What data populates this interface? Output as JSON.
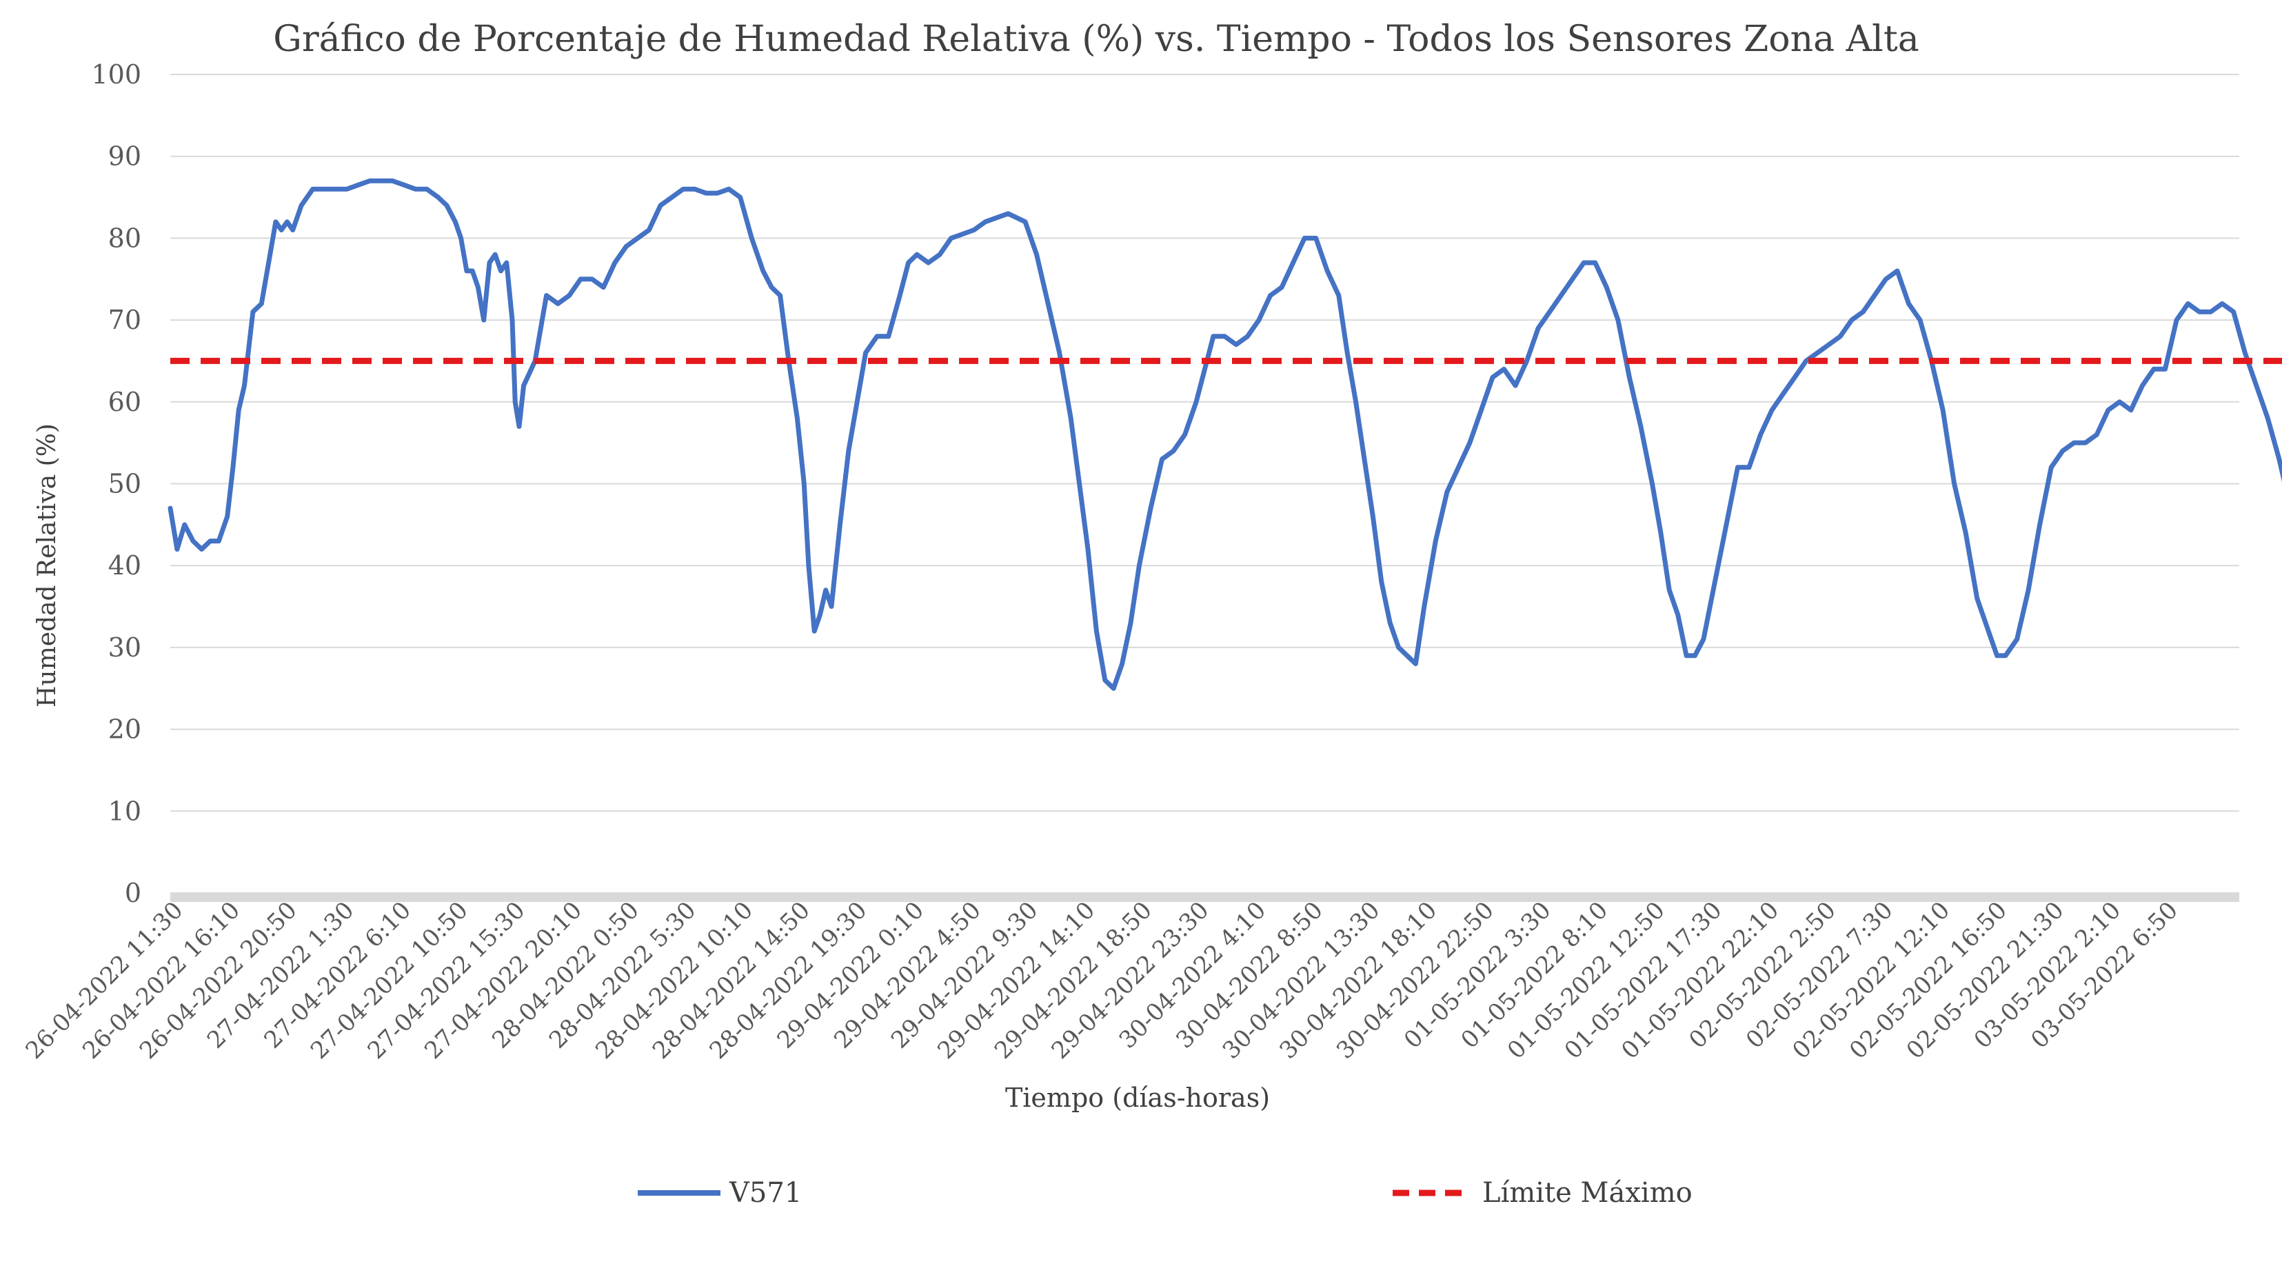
{
  "chart_data": {
    "type": "line",
    "title": "Gráfico de Porcentaje de Humedad Relativa (%) vs. Tiempo - Todos los Sensores Zona Alta",
    "xlabel": "Tiempo (días-horas)",
    "ylabel": "Humedad Relativa (%)",
    "ylim": [
      0,
      100
    ],
    "yticks": [
      0,
      10,
      20,
      30,
      40,
      50,
      60,
      70,
      80,
      90,
      100
    ],
    "grid": true,
    "legend_position": "bottom",
    "x_tick_labels": [
      "26-04-2022 11:30",
      "26-04-2022 16:10",
      "26-04-2022 20:50",
      "27-04-2022 1:30",
      "27-04-2022 6:10",
      "27-04-2022 10:50",
      "27-04-2022 15:30",
      "27-04-2022 20:10",
      "28-04-2022 0:50",
      "28-04-2022 5:30",
      "28-04-2022 10:10",
      "28-04-2022 14:50",
      "28-04-2022 19:30",
      "29-04-2022 0:10",
      "29-04-2022 4:50",
      "29-04-2022 9:30",
      "29-04-2022 14:10",
      "29-04-2022 18:50",
      "29-04-2022 23:30",
      "30-04-2022 4:10",
      "30-04-2022 8:50",
      "30-04-2022 13:30",
      "30-04-2022 18:10",
      "30-04-2022 22:50",
      "01-05-2022 3:30",
      "01-05-2022 8:10",
      "01-05-2022 12:50",
      "01-05-2022 17:30",
      "01-05-2022 22:10",
      "02-05-2022 2:50",
      "02-05-2022 7:30",
      "02-05-2022 12:10",
      "02-05-2022 16:50",
      "02-05-2022 21:30",
      "03-05-2022 2:10",
      "03-05-2022 6:50"
    ],
    "x_end_ticks": 36.3,
    "series": [
      {
        "name": "V571",
        "color": "#4472C4",
        "style": "solid",
        "points": [
          [
            0,
            47
          ],
          [
            0.12,
            42
          ],
          [
            0.25,
            45
          ],
          [
            0.4,
            43
          ],
          [
            0.55,
            42
          ],
          [
            0.7,
            43
          ],
          [
            0.85,
            43
          ],
          [
            1.0,
            46
          ],
          [
            1.1,
            52
          ],
          [
            1.2,
            59
          ],
          [
            1.3,
            62
          ],
          [
            1.45,
            71
          ],
          [
            1.6,
            72
          ],
          [
            1.75,
            78
          ],
          [
            1.85,
            82
          ],
          [
            1.95,
            81
          ],
          [
            2.05,
            82
          ],
          [
            2.15,
            81
          ],
          [
            2.3,
            84
          ],
          [
            2.5,
            86
          ],
          [
            2.7,
            86
          ],
          [
            2.9,
            86
          ],
          [
            3.1,
            86
          ],
          [
            3.3,
            86.5
          ],
          [
            3.5,
            87
          ],
          [
            3.7,
            87
          ],
          [
            3.9,
            87
          ],
          [
            4.1,
            86.5
          ],
          [
            4.3,
            86
          ],
          [
            4.5,
            86
          ],
          [
            4.7,
            85
          ],
          [
            4.85,
            84
          ],
          [
            5.0,
            82
          ],
          [
            5.1,
            80
          ],
          [
            5.2,
            76
          ],
          [
            5.3,
            76
          ],
          [
            5.4,
            74
          ],
          [
            5.5,
            70
          ],
          [
            5.6,
            77
          ],
          [
            5.7,
            78
          ],
          [
            5.8,
            76
          ],
          [
            5.9,
            77
          ],
          [
            6.0,
            70
          ],
          [
            6.05,
            60
          ],
          [
            6.12,
            57
          ],
          [
            6.2,
            62
          ],
          [
            6.4,
            65
          ],
          [
            6.6,
            73
          ],
          [
            6.8,
            72
          ],
          [
            7.0,
            73
          ],
          [
            7.2,
            75
          ],
          [
            7.4,
            75
          ],
          [
            7.6,
            74
          ],
          [
            7.8,
            77
          ],
          [
            8.0,
            79
          ],
          [
            8.2,
            80
          ],
          [
            8.4,
            81
          ],
          [
            8.6,
            84
          ],
          [
            8.8,
            85
          ],
          [
            9.0,
            86
          ],
          [
            9.2,
            86
          ],
          [
            9.4,
            85.5
          ],
          [
            9.6,
            85.5
          ],
          [
            9.8,
            86
          ],
          [
            10.0,
            85
          ],
          [
            10.2,
            80
          ],
          [
            10.4,
            76
          ],
          [
            10.55,
            74
          ],
          [
            10.7,
            73
          ],
          [
            10.85,
            65
          ],
          [
            11.0,
            58
          ],
          [
            11.12,
            50
          ],
          [
            11.2,
            40
          ],
          [
            11.3,
            32
          ],
          [
            11.4,
            34
          ],
          [
            11.5,
            37
          ],
          [
            11.6,
            35
          ],
          [
            11.75,
            45
          ],
          [
            11.9,
            54
          ],
          [
            12.05,
            60
          ],
          [
            12.2,
            66
          ],
          [
            12.4,
            68
          ],
          [
            12.6,
            68
          ],
          [
            12.8,
            73
          ],
          [
            12.95,
            77
          ],
          [
            13.1,
            78
          ],
          [
            13.3,
            77
          ],
          [
            13.5,
            78
          ],
          [
            13.7,
            80
          ],
          [
            13.9,
            80.5
          ],
          [
            14.1,
            81
          ],
          [
            14.3,
            82
          ],
          [
            14.5,
            82.5
          ],
          [
            14.7,
            83
          ],
          [
            15.0,
            82
          ],
          [
            15.2,
            78
          ],
          [
            15.4,
            72
          ],
          [
            15.6,
            66
          ],
          [
            15.8,
            58
          ],
          [
            15.95,
            50
          ],
          [
            16.1,
            42
          ],
          [
            16.25,
            32
          ],
          [
            16.4,
            26
          ],
          [
            16.55,
            25
          ],
          [
            16.7,
            28
          ],
          [
            16.85,
            33
          ],
          [
            17.0,
            40
          ],
          [
            17.2,
            47
          ],
          [
            17.4,
            53
          ],
          [
            17.6,
            54
          ],
          [
            17.8,
            56
          ],
          [
            18.0,
            60
          ],
          [
            18.15,
            64
          ],
          [
            18.3,
            68
          ],
          [
            18.5,
            68
          ],
          [
            18.7,
            67
          ],
          [
            18.9,
            68
          ],
          [
            19.1,
            70
          ],
          [
            19.3,
            73
          ],
          [
            19.5,
            74
          ],
          [
            19.7,
            77
          ],
          [
            19.9,
            80
          ],
          [
            20.1,
            80
          ],
          [
            20.3,
            76
          ],
          [
            20.5,
            73
          ],
          [
            20.65,
            66
          ],
          [
            20.8,
            60
          ],
          [
            20.95,
            53
          ],
          [
            21.1,
            46
          ],
          [
            21.25,
            38
          ],
          [
            21.4,
            33
          ],
          [
            21.55,
            30
          ],
          [
            21.7,
            29
          ],
          [
            21.85,
            28
          ],
          [
            22.0,
            35
          ],
          [
            22.2,
            43
          ],
          [
            22.4,
            49
          ],
          [
            22.6,
            52
          ],
          [
            22.8,
            55
          ],
          [
            23.0,
            59
          ],
          [
            23.2,
            63
          ],
          [
            23.4,
            64
          ],
          [
            23.6,
            62
          ],
          [
            23.8,
            65
          ],
          [
            24.0,
            69
          ],
          [
            24.2,
            71
          ],
          [
            24.4,
            73
          ],
          [
            24.6,
            75
          ],
          [
            24.8,
            77
          ],
          [
            25.0,
            77
          ],
          [
            25.2,
            74
          ],
          [
            25.4,
            70
          ],
          [
            25.6,
            63
          ],
          [
            25.8,
            57
          ],
          [
            26.0,
            50
          ],
          [
            26.15,
            44
          ],
          [
            26.3,
            37
          ],
          [
            26.45,
            34
          ],
          [
            26.6,
            29
          ],
          [
            26.75,
            29
          ],
          [
            26.9,
            31
          ],
          [
            27.1,
            38
          ],
          [
            27.3,
            45
          ],
          [
            27.5,
            52
          ],
          [
            27.7,
            52
          ],
          [
            27.9,
            56
          ],
          [
            28.1,
            59
          ],
          [
            28.3,
            61
          ],
          [
            28.5,
            63
          ],
          [
            28.7,
            65
          ],
          [
            28.9,
            66
          ],
          [
            29.1,
            67
          ],
          [
            29.3,
            68
          ],
          [
            29.5,
            70
          ],
          [
            29.7,
            71
          ],
          [
            29.9,
            73
          ],
          [
            30.1,
            75
          ],
          [
            30.3,
            76
          ],
          [
            30.5,
            72
          ],
          [
            30.7,
            70
          ],
          [
            30.9,
            65
          ],
          [
            31.1,
            59
          ],
          [
            31.3,
            50
          ],
          [
            31.5,
            44
          ],
          [
            31.7,
            36
          ],
          [
            31.9,
            32
          ],
          [
            32.05,
            29
          ],
          [
            32.2,
            29
          ],
          [
            32.4,
            31
          ],
          [
            32.6,
            37
          ],
          [
            32.8,
            45
          ],
          [
            33.0,
            52
          ],
          [
            33.2,
            54
          ],
          [
            33.4,
            55
          ],
          [
            33.6,
            55
          ],
          [
            33.8,
            56
          ],
          [
            34.0,
            59
          ],
          [
            34.2,
            60
          ],
          [
            34.4,
            59
          ],
          [
            34.6,
            62
          ],
          [
            34.8,
            64
          ],
          [
            35.0,
            64
          ],
          [
            35.2,
            70
          ],
          [
            35.4,
            72
          ],
          [
            35.6,
            71
          ],
          [
            35.8,
            71
          ],
          [
            36.0,
            72
          ],
          [
            36.2,
            71
          ],
          [
            36.4,
            66
          ],
          [
            36.6,
            62
          ],
          [
            36.8,
            58
          ],
          [
            37.0,
            53
          ],
          [
            37.2,
            47
          ],
          [
            37.3,
            45
          ]
        ]
      },
      {
        "name": "Límite Máximo",
        "color": "#E31A1C",
        "style": "dashed",
        "points": [
          [
            0,
            65
          ],
          [
            37.3,
            65
          ]
        ]
      }
    ]
  }
}
